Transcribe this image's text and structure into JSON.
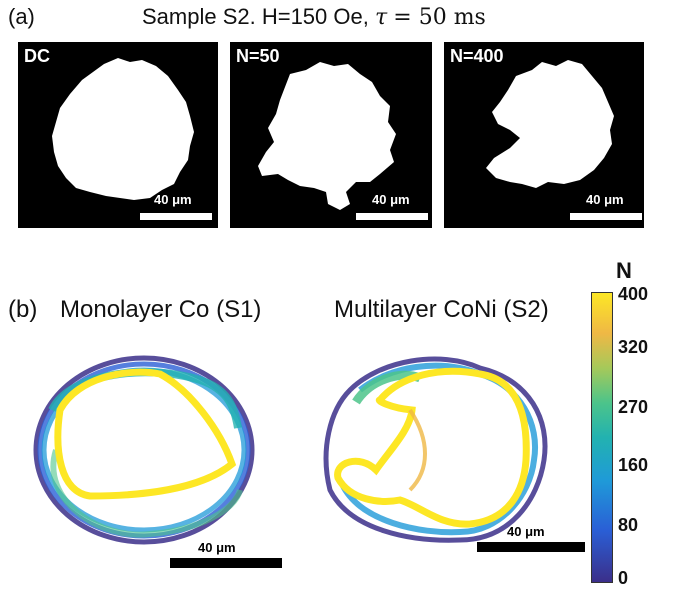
{
  "panel_a": {
    "label": "(a)",
    "title_prefix": "Sample S2. H=150 Oe,",
    "title_tau": "τ",
    "title_suffix": "= 50 ms",
    "panels": [
      {
        "tag": "DC",
        "scale": "40 μm"
      },
      {
        "tag": "N=50",
        "scale": "40 μm"
      },
      {
        "tag": "N=400",
        "scale": "40 μm"
      }
    ]
  },
  "panel_b": {
    "label": "(b)",
    "left_title": "Monolayer Co (S1)",
    "right_title": "Multilayer CoNi (S2)",
    "left_scale": "40 μm",
    "right_scale": "40 μm"
  },
  "colorbar": {
    "title": "N",
    "ticks": [
      "400",
      "320",
      "270",
      "160",
      "80",
      "0"
    ],
    "colors": [
      "#3b2f8a",
      "#2a5fd6",
      "#1f9ad8",
      "#22b2b0",
      "#4cc48a",
      "#efb845",
      "#fde725"
    ]
  }
}
